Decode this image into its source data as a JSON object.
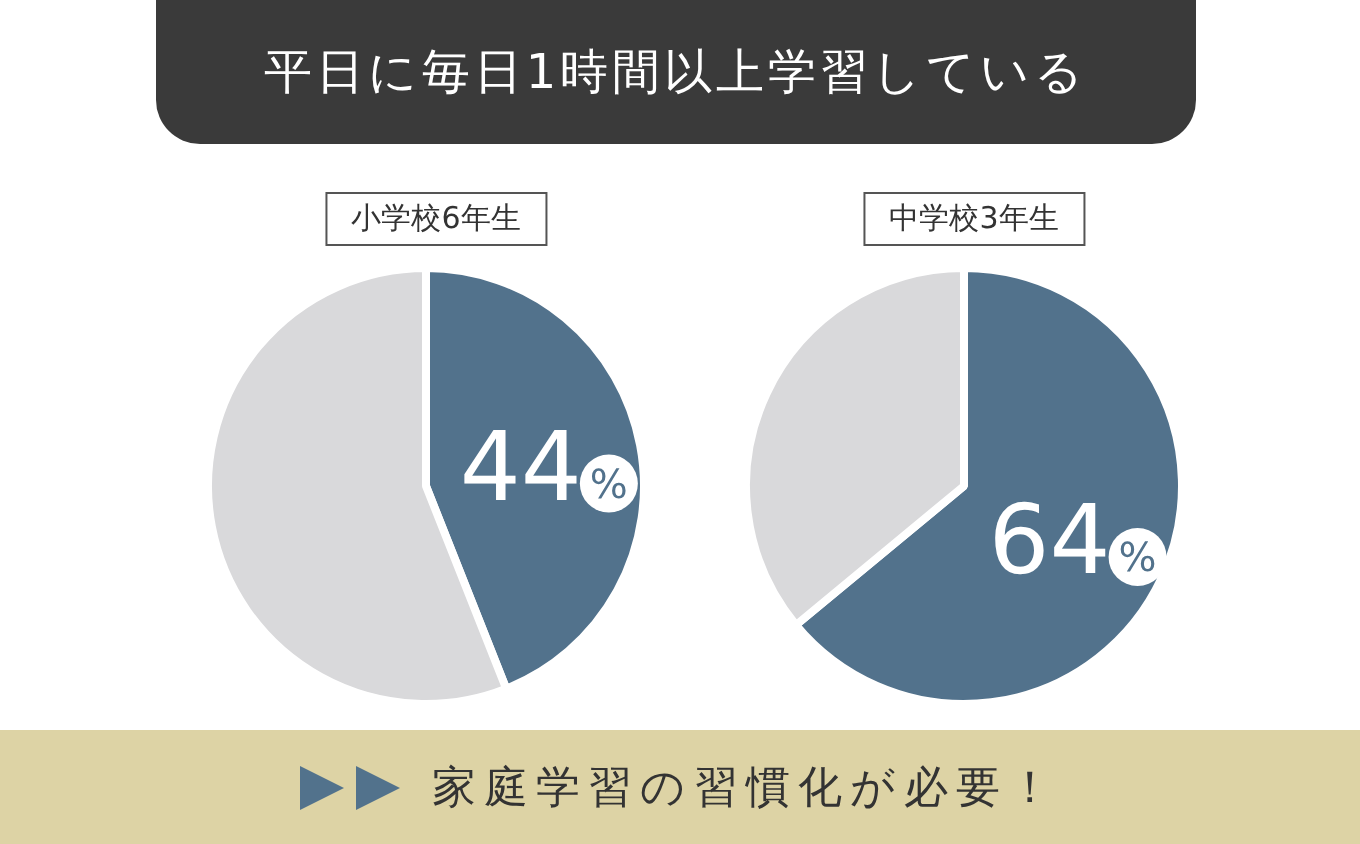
{
  "chart_data": [
    {
      "type": "pie",
      "title": "平日に毎日1時間以上学習している",
      "subtitle": "小学校6年生",
      "categories": [
        null,
        null
      ],
      "values": [
        44,
        56
      ],
      "colors": [
        "#52728c",
        "#d9d9db"
      ],
      "value_labels": [
        "44%",
        null
      ]
    },
    {
      "type": "pie",
      "subtitle": "中学校3年生",
      "categories": [
        null,
        null
      ],
      "values": [
        64,
        36
      ],
      "colors": [
        "#52728c",
        "#d9d9db"
      ],
      "value_labels": [
        "64%",
        null
      ],
      "annotations": [
        "家庭学習の習慣化が必要！"
      ]
    }
  ]
}
